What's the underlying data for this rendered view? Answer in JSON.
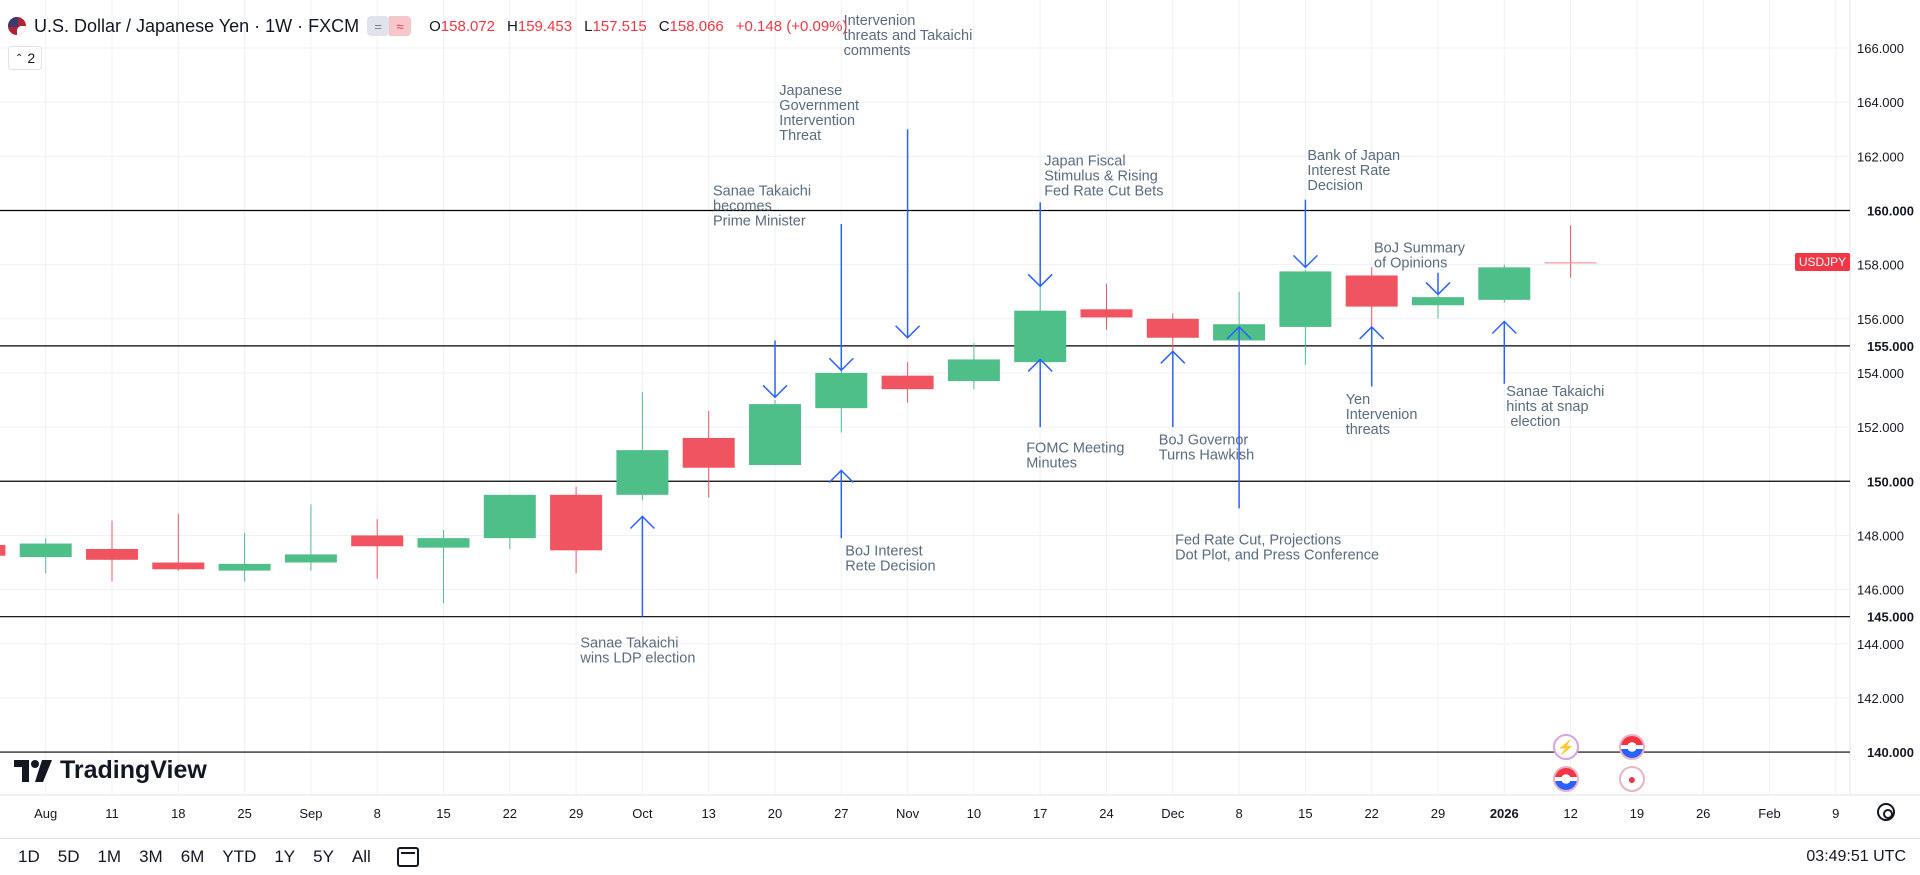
{
  "header": {
    "title": "U.S. Dollar / Japanese Yen · 1W · FXCM",
    "badge_minus": "=",
    "badge_wave": "≈",
    "open_label": "O",
    "open": "158.072",
    "high_label": "H",
    "high": "159.453",
    "low_label": "L",
    "low": "157.515",
    "close_label": "C",
    "close": "158.066",
    "change": "+0.148 (+0.09%)"
  },
  "layers_count": "2",
  "brand": "TradingView",
  "symbol_tag": "USDJPY",
  "time_ranges": [
    "1D",
    "5D",
    "1M",
    "3M",
    "6M",
    "YTD",
    "1Y",
    "5Y",
    "All"
  ],
  "utc_time": "03:49:51 UTC",
  "colors": {
    "up": "#4fbf8a",
    "down": "#ef5460",
    "annotation_line": "#2962ff",
    "annotation_text": "#5a6b7d",
    "level_line": "#000000",
    "grid": "#eef1f6"
  },
  "event_icons": [
    "flash-icon",
    "us-flag-icon",
    "us-flag-icon",
    "record-dot-icon"
  ],
  "chart_data": {
    "type": "candlestick",
    "ylim": [
      138.8,
      167.2
    ],
    "y_ticks": [
      "166.000",
      "164.000",
      "162.000",
      "158.000",
      "156.000",
      "154.000",
      "152.000",
      "148.000",
      "146.000",
      "144.000",
      "142.000"
    ],
    "levels": [
      {
        "value": 160.0,
        "label": "160.000"
      },
      {
        "value": 155.0,
        "label": "155.000"
      },
      {
        "value": 150.0,
        "label": "150.000"
      },
      {
        "value": 145.0,
        "label": "145.000"
      },
      {
        "value": 140.0,
        "label": "140.000"
      }
    ],
    "x_ticks": [
      {
        "i": -1,
        "label": "Aug"
      },
      {
        "i": 0,
        "label": "11"
      },
      {
        "i": 1,
        "label": "18"
      },
      {
        "i": 2,
        "label": "25"
      },
      {
        "i": 3,
        "label": "Sep"
      },
      {
        "i": 4,
        "label": "8"
      },
      {
        "i": 5,
        "label": "15"
      },
      {
        "i": 6,
        "label": "22"
      },
      {
        "i": 7,
        "label": "29"
      },
      {
        "i": 8,
        "label": "Oct"
      },
      {
        "i": 9,
        "label": "13"
      },
      {
        "i": 10,
        "label": "20"
      },
      {
        "i": 11,
        "label": "27"
      },
      {
        "i": 12,
        "label": "Nov"
      },
      {
        "i": 13,
        "label": "10"
      },
      {
        "i": 14,
        "label": "17"
      },
      {
        "i": 15,
        "label": "24"
      },
      {
        "i": 16,
        "label": "Dec"
      },
      {
        "i": 17,
        "label": "8"
      },
      {
        "i": 18,
        "label": "15"
      },
      {
        "i": 19,
        "label": "22"
      },
      {
        "i": 20,
        "label": "29"
      },
      {
        "i": 21,
        "label": "2026"
      },
      {
        "i": 22,
        "label": "12"
      },
      {
        "i": 23,
        "label": "19"
      },
      {
        "i": 24,
        "label": "26"
      },
      {
        "i": 25,
        "label": "Feb"
      },
      {
        "i": 26,
        "label": "9"
      }
    ],
    "candles": [
      {
        "i": -2,
        "o": 147.65,
        "h": 148.0,
        "l": 147.3,
        "c": 147.25
      },
      {
        "i": -1,
        "o": 147.2,
        "h": 147.9,
        "l": 146.6,
        "c": 147.7
      },
      {
        "i": 0,
        "o": 147.5,
        "h": 148.55,
        "l": 146.3,
        "c": 147.1
      },
      {
        "i": 1,
        "o": 147.0,
        "h": 148.8,
        "l": 146.7,
        "c": 146.75
      },
      {
        "i": 2,
        "o": 146.7,
        "h": 148.1,
        "l": 146.3,
        "c": 146.95
      },
      {
        "i": 3,
        "o": 147.0,
        "h": 149.15,
        "l": 146.7,
        "c": 147.3
      },
      {
        "i": 4,
        "o": 148.0,
        "h": 148.6,
        "l": 146.4,
        "c": 147.6
      },
      {
        "i": 5,
        "o": 147.55,
        "h": 148.2,
        "l": 145.5,
        "c": 147.9
      },
      {
        "i": 6,
        "o": 147.9,
        "h": 149.5,
        "l": 147.5,
        "c": 149.5
      },
      {
        "i": 7,
        "o": 149.5,
        "h": 149.8,
        "l": 146.6,
        "c": 147.45
      },
      {
        "i": 8,
        "o": 149.5,
        "h": 153.3,
        "l": 149.3,
        "c": 151.15
      },
      {
        "i": 9,
        "o": 151.6,
        "h": 152.6,
        "l": 149.4,
        "c": 150.5
      },
      {
        "i": 10,
        "o": 150.6,
        "h": 153.0,
        "l": 150.6,
        "c": 152.85
      },
      {
        "i": 11,
        "o": 152.7,
        "h": 154.5,
        "l": 151.8,
        "c": 154.0
      },
      {
        "i": 12,
        "o": 153.9,
        "h": 154.4,
        "l": 152.9,
        "c": 153.4
      },
      {
        "i": 13,
        "o": 153.7,
        "h": 155.1,
        "l": 153.4,
        "c": 154.5
      },
      {
        "i": 14,
        "o": 154.4,
        "h": 157.3,
        "l": 153.3,
        "c": 156.3
      },
      {
        "i": 15,
        "o": 156.35,
        "h": 157.3,
        "l": 155.6,
        "c": 156.05
      },
      {
        "i": 16,
        "o": 156.0,
        "h": 156.2,
        "l": 154.6,
        "c": 155.3
      },
      {
        "i": 17,
        "o": 155.2,
        "h": 157.0,
        "l": 154.3,
        "c": 155.8
      },
      {
        "i": 18,
        "o": 155.7,
        "h": 157.8,
        "l": 154.3,
        "c": 157.75
      },
      {
        "i": 19,
        "o": 157.6,
        "h": 157.9,
        "l": 155.4,
        "c": 156.45
      },
      {
        "i": 20,
        "o": 156.5,
        "h": 157.2,
        "l": 156.0,
        "c": 156.8
      },
      {
        "i": 21,
        "o": 156.7,
        "h": 158.0,
        "l": 156.6,
        "c": 157.9
      },
      {
        "i": 22,
        "o": 158.072,
        "h": 159.453,
        "l": 157.515,
        "c": 158.066
      }
    ],
    "annotations": [
      {
        "i": 8,
        "text": [
          "Sanae Takaichi",
          "wins LDP election"
        ],
        "arrow_from": 145.0,
        "arrow_to": 148.7,
        "text_top": 144.3,
        "align": "start",
        "dx": -62
      },
      {
        "i": 10,
        "text": [
          "Sanae Takaichi",
          "becomes",
          "Prime Minister"
        ],
        "arrow_from": 155.2,
        "arrow_to": 153.1,
        "text_top": 161.0,
        "align": "start",
        "dx": -62
      },
      {
        "i": 11,
        "text": [
          "Japanese",
          "Government",
          "Intervention",
          "Threat"
        ],
        "arrow_from": 159.5,
        "arrow_to": 154.1,
        "text_top": 164.7,
        "align": "start",
        "dx": -62
      },
      {
        "i": 11,
        "text": [
          "BoJ Interest",
          "Rete Decision"
        ],
        "arrow_from": 147.9,
        "arrow_to": 150.4,
        "text_top": 147.7,
        "align": "start",
        "dx": 4
      },
      {
        "i": 12,
        "text": [
          "Intervenion",
          "threats and Takaichi",
          "comments"
        ],
        "arrow_from": 163.0,
        "arrow_to": 155.3,
        "text_top": 167.3,
        "align": "start",
        "dx": -64
      },
      {
        "i": 14,
        "text": [
          "Japan Fiscal",
          "Stimulus & Rising",
          "Fed Rate Cut Bets"
        ],
        "arrow_from": 160.3,
        "arrow_to": 157.2,
        "text_top": 162.1,
        "align": "start",
        "dx": 4
      },
      {
        "i": 14,
        "text": [
          "FOMC Meeting",
          "Minutes"
        ],
        "arrow_from": 152.0,
        "arrow_to": 154.5,
        "text_top": 151.5,
        "align": "middle",
        "dx": -14
      },
      {
        "i": 16,
        "text": [
          "BoJ Governor",
          "Turns Hawkish"
        ],
        "arrow_from": 152.0,
        "arrow_to": 154.8,
        "text_top": 151.8,
        "align": "middle",
        "dx": -14
      },
      {
        "i": 17,
        "text": [
          "Fed Rate Cut, Projections",
          "Dot Plot, and Press Conference"
        ],
        "arrow_from": 149.0,
        "arrow_to": 155.7,
        "text_top": 148.1,
        "align": "start",
        "dx": -64
      },
      {
        "i": 18,
        "text": [
          "Bank of Japan",
          "Interest Rate",
          "Decision"
        ],
        "arrow_from": 160.4,
        "arrow_to": 157.9,
        "text_top": 162.3,
        "align": "start",
        "dx": 2
      },
      {
        "i": 19,
        "text": [
          "Yen",
          "Intervenion",
          "threats"
        ],
        "arrow_from": 153.5,
        "arrow_to": 155.7,
        "text_top": 153.3,
        "align": "middle",
        "dx": -26
      },
      {
        "i": 20,
        "text": [
          "BoJ Summary",
          "of Opinions"
        ],
        "arrow_from": 157.7,
        "arrow_to": 156.9,
        "text_top": 158.9,
        "align": "start",
        "dx": -64
      },
      {
        "i": 21,
        "text": [
          "Sanae Takaichi",
          "hints at snap",
          " election"
        ],
        "arrow_from": 153.6,
        "arrow_to": 155.9,
        "text_top": 153.6,
        "align": "start",
        "dx": 2
      }
    ]
  }
}
